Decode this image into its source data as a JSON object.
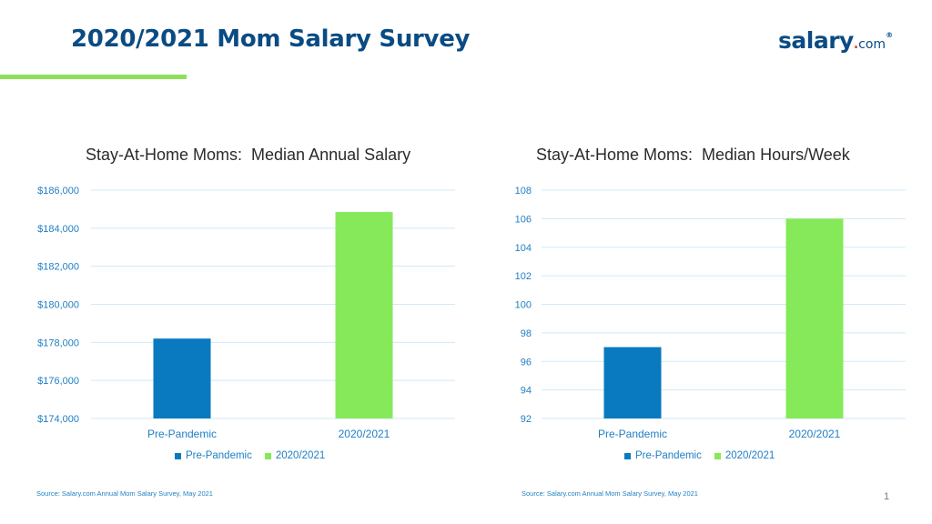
{
  "header": {
    "title": "2020/2021 Mom Salary Survey",
    "logo": {
      "main": "salary",
      "dot": ".",
      "suffix": "com",
      "reg": "®"
    }
  },
  "colors": {
    "brand": "#0a4b83",
    "accent_green": "#86e95a",
    "series_blue": "#0a7ac0",
    "tick_text": "#1f7fc4",
    "grid": "#cfe9f7"
  },
  "chart_data": [
    {
      "type": "bar",
      "title": "Stay-At-Home Moms:  Median Annual Salary",
      "categories": [
        "Pre-Pandemic",
        "2020/2021"
      ],
      "values": [
        178200,
        184850
      ],
      "bar_colors": [
        "#0a7ac0",
        "#86e95a"
      ],
      "ylim": [
        174000,
        186000
      ],
      "yticks": [
        174000,
        176000,
        178000,
        180000,
        182000,
        184000,
        186000
      ],
      "ytick_labels": [
        "$174,000",
        "$176,000",
        "$178,000",
        "$180,000",
        "$182,000",
        "$184,000",
        "$186,000"
      ],
      "grid": true,
      "legend": [
        "Pre-Pandemic",
        "2020/2021"
      ],
      "legend_position": "bottom",
      "source": "Source: Salary.com Annual Mom Salary Survey, May 2021"
    },
    {
      "type": "bar",
      "title": "Stay-At-Home Moms:  Median Hours/Week",
      "categories": [
        "Pre-Pandemic",
        "2020/2021"
      ],
      "values": [
        97,
        106
      ],
      "bar_colors": [
        "#0a7ac0",
        "#86e95a"
      ],
      "ylim": [
        92,
        108
      ],
      "yticks": [
        92,
        94,
        96,
        98,
        100,
        102,
        104,
        106,
        108
      ],
      "ytick_labels": [
        "92",
        "94",
        "96",
        "98",
        "100",
        "102",
        "104",
        "106",
        "108"
      ],
      "grid": true,
      "legend": [
        "Pre-Pandemic",
        "2020/2021"
      ],
      "legend_position": "bottom",
      "source": "Source: Salary.com Annual Mom Salary Survey, May 2021"
    }
  ],
  "footer": {
    "page_number": "1"
  }
}
